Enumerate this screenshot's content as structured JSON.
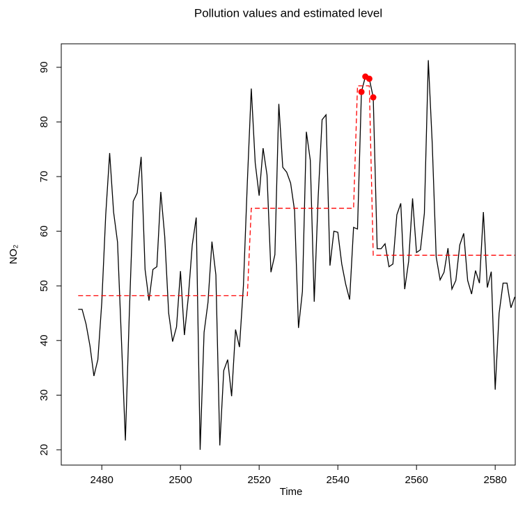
{
  "chart_data": {
    "type": "line",
    "title": "Pollution values and estimated level",
    "x_label": "Time",
    "y_label": "NO₂",
    "x": [
      2474,
      2475,
      2476,
      2477,
      2478,
      2479,
      2480,
      2481,
      2482,
      2483,
      2484,
      2485,
      2486,
      2487,
      2488,
      2489,
      2490,
      2491,
      2492,
      2493,
      2494,
      2495,
      2496,
      2497,
      2498,
      2499,
      2500,
      2501,
      2502,
      2503,
      2504,
      2505,
      2506,
      2507,
      2508,
      2509,
      2510,
      2511,
      2512,
      2513,
      2514,
      2515,
      2516,
      2517,
      2518,
      2519,
      2520,
      2521,
      2522,
      2523,
      2524,
      2525,
      2526,
      2527,
      2528,
      2529,
      2530,
      2531,
      2532,
      2533,
      2534,
      2535,
      2536,
      2537,
      2538,
      2539,
      2540,
      2541,
      2542,
      2543,
      2544,
      2545,
      2546,
      2547,
      2548,
      2549,
      2550,
      2551,
      2552,
      2553,
      2554,
      2555,
      2556,
      2557,
      2558,
      2559,
      2560,
      2561,
      2562,
      2563,
      2564,
      2565,
      2566,
      2567,
      2568,
      2569,
      2570,
      2571,
      2572,
      2573,
      2574,
      2575,
      2576,
      2577,
      2578,
      2579,
      2580,
      2581,
      2582,
      2583,
      2584,
      2585
    ],
    "series": [
      {
        "color": "#000000",
        "dashed": false,
        "values": [
          45.7,
          45.7,
          43,
          39,
          33.5,
          36.5,
          47,
          63,
          74.3,
          63.5,
          58,
          40,
          21.7,
          45,
          65.5,
          67,
          73.6,
          53,
          47.3,
          53,
          53.5,
          67.2,
          59,
          45,
          39.8,
          42.5,
          52.7,
          41,
          48,
          57.5,
          62.5,
          20,
          41.5,
          47,
          58.1,
          52,
          20.8,
          34.5,
          36.5,
          29.8,
          42,
          38.8,
          50,
          69,
          86.1,
          72.5,
          66.5,
          75.2,
          70.3,
          52.5,
          55.7,
          83.3,
          71.7,
          70.8,
          68.8,
          63.8,
          42.3,
          49,
          78.2,
          73,
          47.1,
          66.2,
          80.4,
          81.3,
          53.7,
          60,
          59.8,
          54,
          50.3,
          47.5,
          60.7,
          60.4,
          85.5,
          88.3,
          87.9,
          84.5,
          56.8,
          56.8,
          57.7,
          53.5,
          54,
          63,
          65.1,
          49.4,
          54.5,
          66,
          56.1,
          56.6,
          63.3,
          91.3,
          76,
          55.3,
          51.1,
          52.5,
          56.9,
          49.4,
          51,
          57.5,
          59.6,
          51,
          48.5,
          52.8,
          50.5,
          63.5,
          49.7,
          52.6,
          31,
          45,
          50.5,
          50.5,
          46,
          48
        ]
      },
      {
        "color": "#ff0000",
        "dashed": true,
        "values": [
          48.2,
          48.2,
          48.2,
          48.2,
          48.2,
          48.2,
          48.2,
          48.2,
          48.2,
          48.2,
          48.2,
          48.2,
          48.2,
          48.2,
          48.2,
          48.2,
          48.2,
          48.2,
          48.2,
          48.2,
          48.2,
          48.2,
          48.2,
          48.2,
          48.2,
          48.2,
          48.2,
          48.2,
          48.2,
          48.2,
          48.2,
          48.2,
          48.2,
          48.2,
          48.2,
          48.2,
          48.2,
          48.2,
          48.2,
          48.2,
          48.2,
          48.2,
          48.2,
          48.2,
          64.2,
          64.2,
          64.2,
          64.2,
          64.2,
          64.2,
          64.2,
          64.2,
          64.2,
          64.2,
          64.2,
          64.2,
          64.2,
          64.2,
          64.2,
          64.2,
          64.2,
          64.2,
          64.2,
          64.2,
          64.2,
          64.2,
          64.2,
          64.2,
          64.2,
          64.2,
          64.2,
          86.6,
          86.6,
          86.6,
          86.6,
          55.6,
          55.6,
          55.6,
          55.6,
          55.6,
          55.6,
          55.6,
          55.6,
          55.6,
          55.6,
          55.6,
          55.6,
          55.6,
          55.6,
          55.6,
          55.6,
          55.6,
          55.6,
          55.6,
          55.6,
          55.6,
          55.6,
          55.6,
          55.6,
          55.6,
          55.6,
          55.6,
          55.6,
          55.6,
          55.6,
          55.6,
          55.6,
          55.6,
          55.6,
          55.6,
          55.6,
          55.6
        ]
      }
    ],
    "points": {
      "color": "#ff0000",
      "x": [
        2546,
        2547,
        2548,
        2549
      ],
      "values": [
        85.5,
        88.3,
        87.9,
        84.5
      ]
    },
    "xlim": [
      2469.7,
      2585.1
    ],
    "ylim": [
      17.2,
      94.3
    ],
    "xticks": [
      2480,
      2500,
      2520,
      2540,
      2560,
      2580
    ],
    "yticks": [
      20,
      30,
      40,
      50,
      60,
      70,
      80,
      90
    ]
  }
}
